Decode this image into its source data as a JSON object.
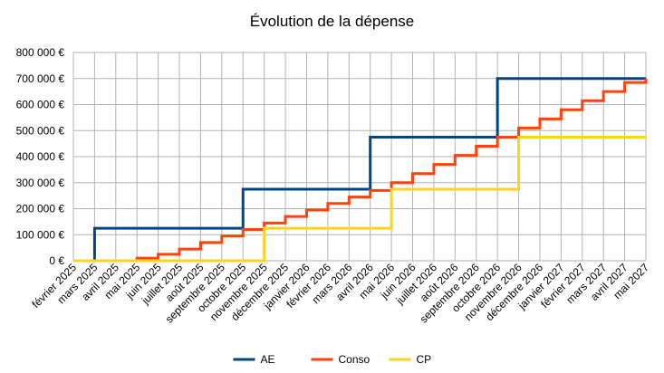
{
  "chart_data": {
    "type": "line",
    "step": true,
    "title": "Évolution de la dépense",
    "xlabel": "",
    "ylabel": "",
    "categories": [
      "février 2025",
      "mars 2025",
      "avril 2025",
      "mai 2025",
      "juin 2025",
      "juillet 2025",
      "août 2025",
      "septembre 2025",
      "octobre 2025",
      "novembre 2025",
      "décembre 2025",
      "janvier 2026",
      "février 2026",
      "mars 2026",
      "avril 2026",
      "mai 2026",
      "juin 2026",
      "juillet 2026",
      "août 2026",
      "septembre 2026",
      "octobre 2026",
      "novembre 2026",
      "décembre 2026",
      "janvier 2027",
      "février 2027",
      "mars 2027",
      "avril 2027",
      "mai 2027"
    ],
    "yticks": [
      "0 €",
      "100 000 €",
      "200 000 €",
      "300 000 €",
      "400 000 €",
      "500 000 €",
      "600 000 €",
      "700 000 €",
      "800 000 €"
    ],
    "ylim": [
      0,
      800000
    ],
    "grid": true,
    "legend_position": "bottom",
    "series": [
      {
        "name": "AE",
        "color": "#004586",
        "values": [
          0,
          125000,
          125000,
          125000,
          125000,
          125000,
          125000,
          125000,
          275000,
          275000,
          275000,
          275000,
          275000,
          275000,
          475000,
          475000,
          475000,
          475000,
          475000,
          475000,
          700000,
          700000,
          700000,
          700000,
          700000,
          700000,
          700000,
          700000
        ]
      },
      {
        "name": "Conso",
        "color": "#ff420e",
        "values": [
          0,
          0,
          0,
          10000,
          25000,
          45000,
          70000,
          95000,
          120000,
          145000,
          170000,
          195000,
          220000,
          245000,
          270000,
          300000,
          335000,
          370000,
          405000,
          440000,
          475000,
          510000,
          545000,
          580000,
          615000,
          650000,
          685000,
          700000
        ]
      },
      {
        "name": "CP",
        "color": "#ffd320",
        "values": [
          0,
          0,
          0,
          0,
          0,
          0,
          0,
          0,
          0,
          125000,
          125000,
          125000,
          125000,
          125000,
          125000,
          275000,
          275000,
          275000,
          275000,
          275000,
          275000,
          475000,
          475000,
          475000,
          475000,
          475000,
          475000,
          475000
        ]
      }
    ]
  }
}
